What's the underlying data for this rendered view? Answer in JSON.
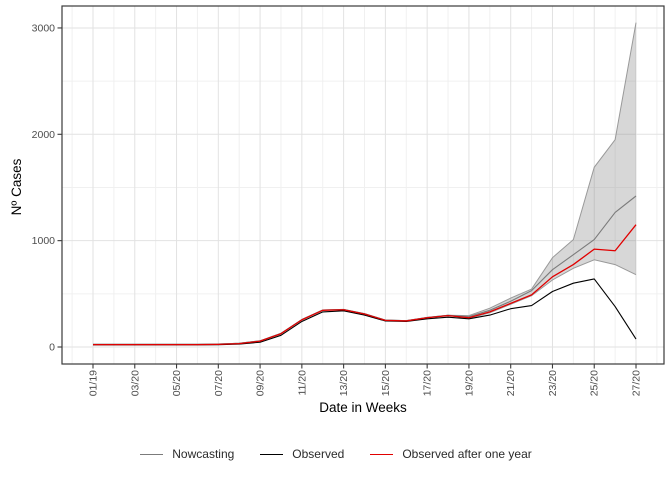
{
  "chart_data": {
    "type": "line",
    "title": "",
    "xlabel": "Date in Weeks",
    "ylabel": "Nº Cases",
    "x_weeks": [
      1,
      2,
      3,
      4,
      5,
      6,
      7,
      8,
      9,
      10,
      11,
      12,
      13,
      14,
      15,
      16,
      17,
      18,
      19,
      20,
      21,
      22,
      23,
      24,
      25,
      26,
      27
    ],
    "x_tick_weeks": [
      1,
      3,
      5,
      7,
      9,
      11,
      13,
      15,
      17,
      19,
      21,
      23,
      25,
      27
    ],
    "x_tick_labels": [
      "01/19",
      "03/20",
      "05/20",
      "07/20",
      "09/20",
      "11/20",
      "13/20",
      "15/20",
      "17/20",
      "19/20",
      "21/20",
      "23/20",
      "25/20",
      "27/20"
    ],
    "y_ticks": [
      0,
      1000,
      2000,
      3000
    ],
    "y_tick_labels": [
      "0",
      "1000",
      "2000",
      "3000"
    ],
    "y_minor_ticks": [
      500,
      1500,
      2500
    ],
    "ylim": [
      0,
      3050
    ],
    "grid": true,
    "legend_position": "bottom",
    "series": [
      {
        "name": "Nowcasting",
        "color": "#7b7b7b",
        "values": [
          25,
          25,
          25,
          25,
          25,
          25,
          28,
          35,
          58,
          128,
          258,
          348,
          353,
          313,
          253,
          248,
          278,
          298,
          285,
          345,
          430,
          530,
          727,
          868,
          1010,
          1265,
          1420
        ]
      },
      {
        "name": "Observed",
        "color": "#000000",
        "values": [
          20,
          20,
          20,
          20,
          20,
          20,
          22,
          28,
          45,
          110,
          240,
          330,
          340,
          300,
          245,
          240,
          265,
          280,
          265,
          300,
          360,
          390,
          522,
          600,
          640,
          380,
          75
        ]
      },
      {
        "name": "Observed after one year",
        "color": "#e10000",
        "values": [
          22,
          22,
          22,
          22,
          22,
          22,
          25,
          32,
          55,
          125,
          255,
          345,
          350,
          310,
          250,
          245,
          275,
          295,
          275,
          330,
          410,
          490,
          660,
          775,
          920,
          905,
          1150
        ]
      }
    ],
    "ribbon": {
      "label": "nowcasting-uncertainty-band",
      "fill_rgba": "rgba(135,135,135,0.33)",
      "edge_color": "#999999",
      "lower": [
        25,
        25,
        25,
        25,
        25,
        25,
        28,
        35,
        58,
        128,
        258,
        348,
        353,
        313,
        253,
        248,
        278,
        298,
        268,
        322,
        402,
        482,
        630,
        740,
        820,
        775,
        680
      ],
      "upper": [
        25,
        25,
        25,
        25,
        25,
        25,
        28,
        35,
        58,
        128,
        258,
        348,
        353,
        313,
        253,
        248,
        278,
        298,
        295,
        365,
        460,
        545,
        840,
        1010,
        1690,
        1950,
        3050
      ]
    }
  },
  "style": {
    "panel_border": "#3a3a3a",
    "grid_major": "#e2e2e2",
    "grid_minor": "#f0f0f0",
    "tick_color": "#3a3a3a",
    "tick_text_color": "#4d4d4d",
    "background": "#ffffff"
  }
}
